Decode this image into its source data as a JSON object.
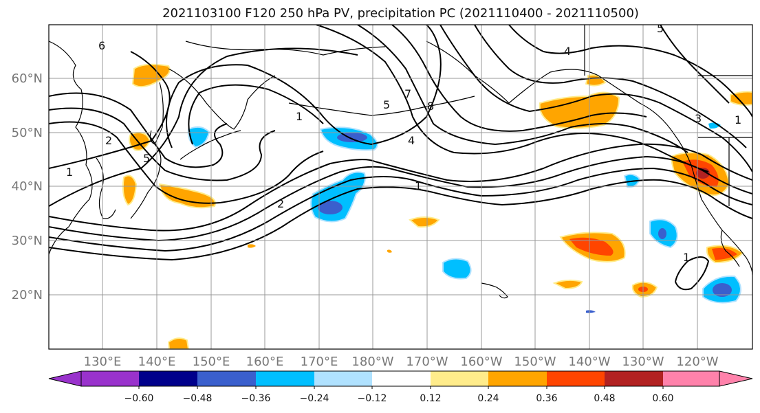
{
  "title": "2021103100 F120 250 hPa PV, precipitation PC (2021110400 - 2021110500)",
  "map": {
    "lat_labels": [
      "60°N",
      "50°N",
      "40°N",
      "30°N",
      "20°N"
    ],
    "lon_labels": [
      "130°E",
      "140°E",
      "150°E",
      "160°E",
      "170°E",
      "180°W",
      "170°W",
      "160°W",
      "150°W",
      "140°W",
      "130°W",
      "120°W"
    ],
    "contour_labels": [
      "6",
      "1",
      "2",
      "5",
      "1",
      "5",
      "7",
      "8",
      "4",
      "1",
      "2",
      "4",
      "5",
      "3",
      "1",
      "1"
    ],
    "contour_color": "#000000",
    "grid_color": "#999999"
  },
  "colorbar": {
    "tick_labels": [
      "−0.60",
      "−0.48",
      "−0.36",
      "−0.24",
      "−0.12",
      "0.12",
      "0.24",
      "0.36",
      "0.48",
      "0.60"
    ],
    "colors": [
      "#9932CC",
      "#00008B",
      "#3A5FCD",
      "#00BFFF",
      "#B0E2FF",
      "#FFFFFF",
      "#FFEC8B",
      "#FFA500",
      "#FF4500",
      "#B22222",
      "#FF82AB"
    ]
  }
}
